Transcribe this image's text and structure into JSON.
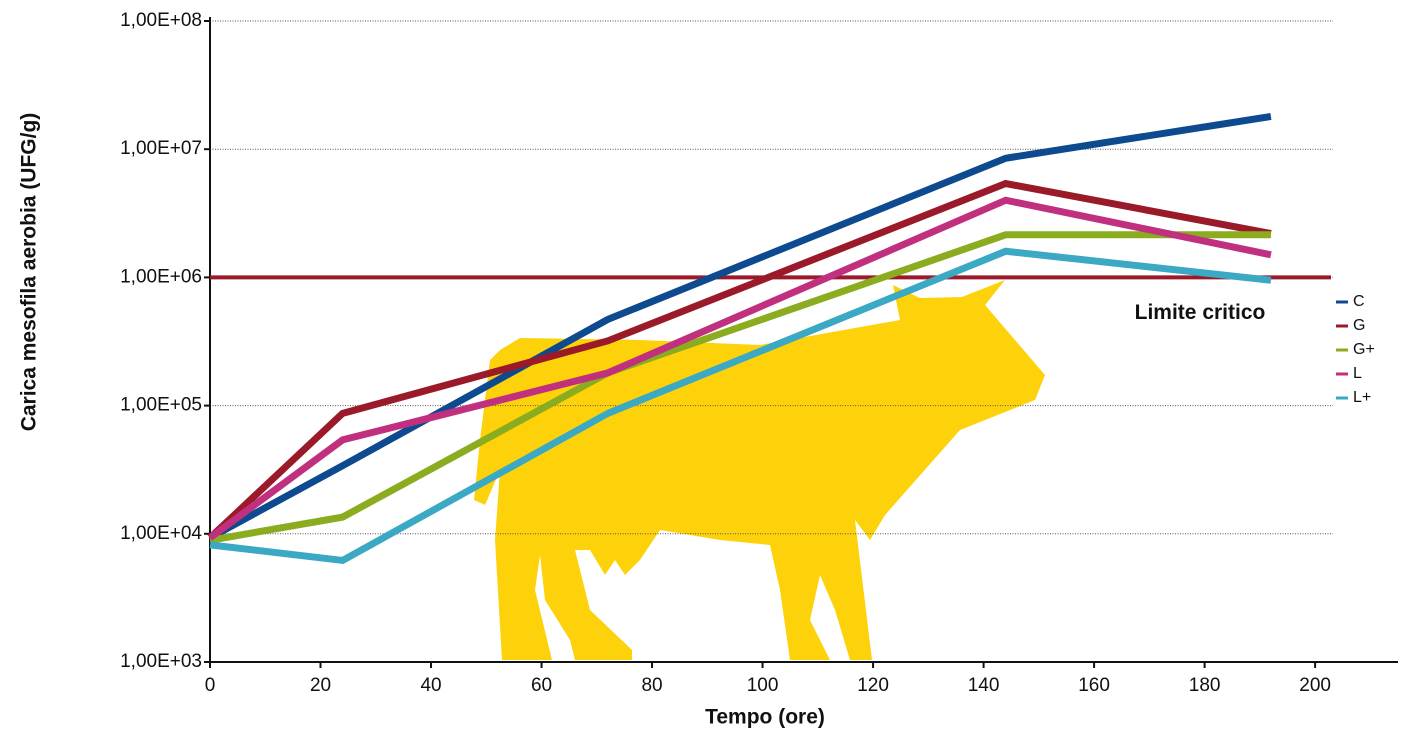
{
  "chart_data": {
    "type": "line",
    "log_y": true,
    "grid": true,
    "x_label": "Tempo (ore)",
    "y_label": "Carica mesofila aerobia (UFG/g)",
    "x": [
      0,
      24,
      72,
      144,
      192
    ],
    "xlim": [
      0,
      215
    ],
    "xticks": [
      0,
      20,
      40,
      60,
      80,
      100,
      120,
      140,
      160,
      180,
      200
    ],
    "ylim": [
      1000,
      100000000
    ],
    "yticks": [
      {
        "value": 1000,
        "label": "1,00E+03"
      },
      {
        "value": 10000,
        "label": "1,00E+04"
      },
      {
        "value": 100000,
        "label": "1,00E+05"
      },
      {
        "value": 1000000,
        "label": "1,00E+06"
      },
      {
        "value": 10000000,
        "label": "1,00E+07"
      },
      {
        "value": 100000000,
        "label": "1,00E+08"
      }
    ],
    "critical_line": {
      "value": 1000000,
      "label": "Limite critico",
      "color": "#9a1a2a"
    },
    "series": [
      {
        "name": "C",
        "color": "#0d4a8f",
        "values": [
          9300,
          34000,
          470000,
          8500000,
          18000000
        ]
      },
      {
        "name": "G",
        "color": "#9a1a2a",
        "values": [
          9300,
          87000,
          320000,
          5400000,
          2200000
        ]
      },
      {
        "name": "G+",
        "color": "#8aac1e",
        "values": [
          8900,
          13500,
          180000,
          2150000,
          2150000
        ]
      },
      {
        "name": "L",
        "color": "#c0307e",
        "values": [
          9300,
          54000,
          180000,
          4000000,
          1500000
        ]
      },
      {
        "name": "L+",
        "color": "#3ba8c4",
        "values": [
          8200,
          6200,
          87000,
          1600000,
          950000
        ]
      }
    ]
  }
}
